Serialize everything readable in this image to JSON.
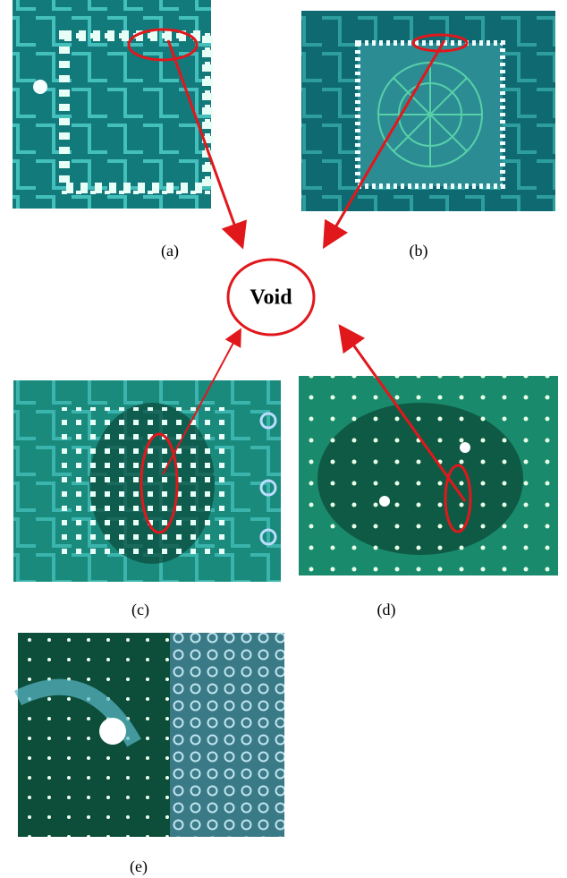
{
  "panels": [
    {
      "label": "(a)"
    },
    {
      "label": "(b)"
    },
    {
      "label": "(c)"
    },
    {
      "label": "(d)"
    },
    {
      "label": "(e)"
    }
  ],
  "center": {
    "label": "Void"
  }
}
